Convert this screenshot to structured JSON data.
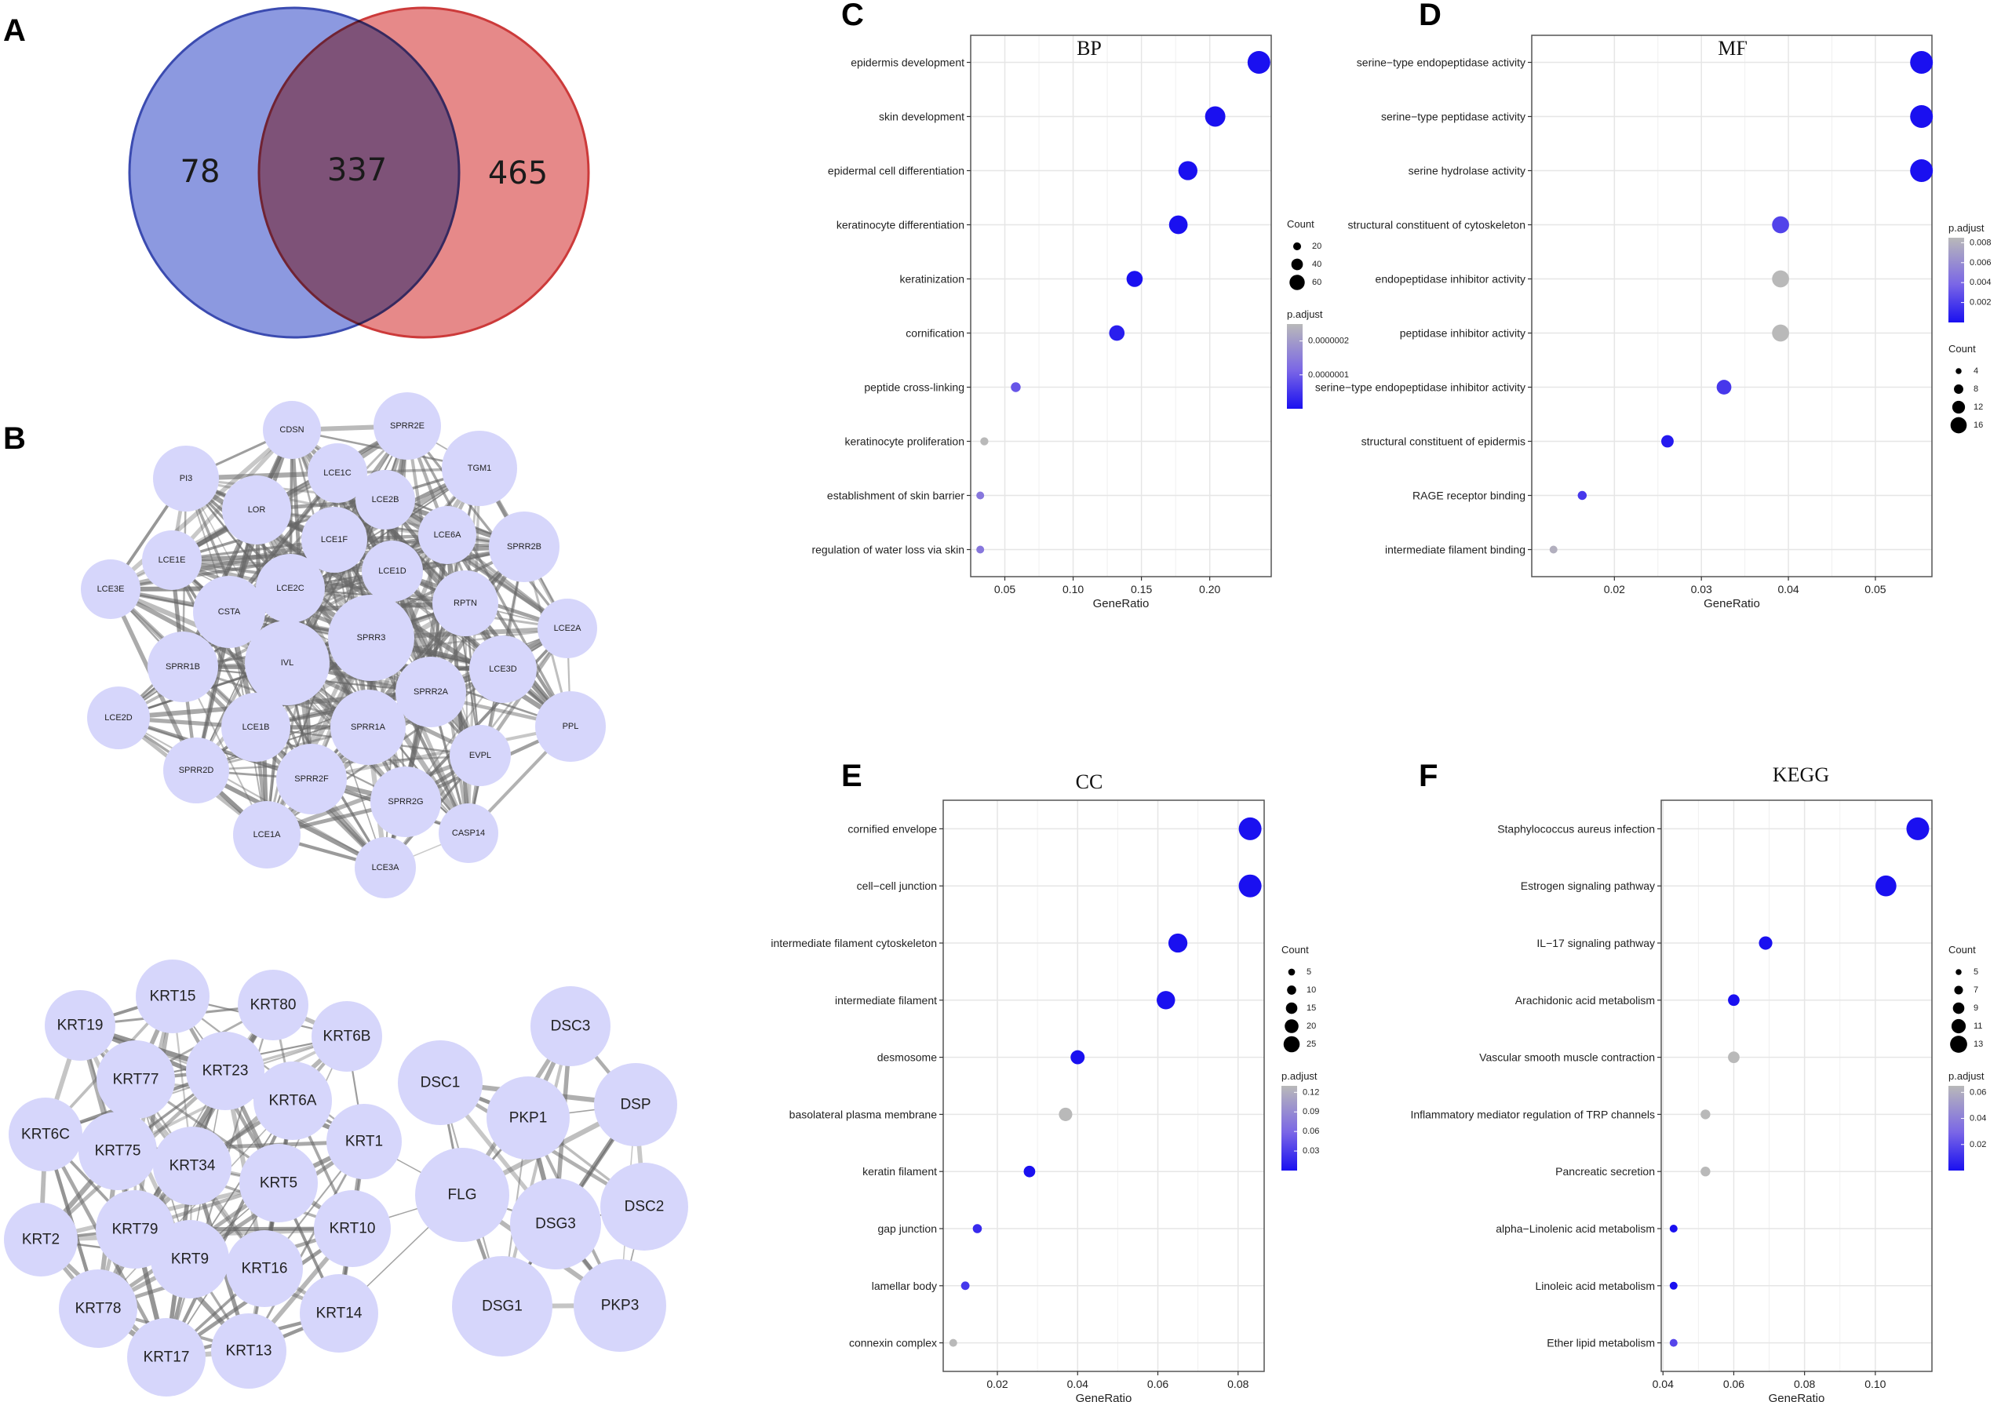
{
  "panel_letters": [
    "A",
    "B",
    "C",
    "D",
    "E",
    "F"
  ],
  "colors": {
    "venn_left": "#6f7fd8",
    "venn_right": "#e06b6b",
    "venn_left_stroke": "#3b4bb0",
    "venn_right_stroke": "#cc3a3a",
    "node_fill": "#d6d6fb",
    "edge": "#666666",
    "dot_high": "#1a10f0",
    "dot_low": "#b9b9b9"
  },
  "venn": {
    "left_only": "78",
    "overlap": "337",
    "right_only": "465"
  },
  "network": {
    "top_nodes": [
      "CDSN",
      "SPRR2E",
      "TGM1",
      "PI3",
      "LOR",
      "LCE1C",
      "LCE2B",
      "LCE6A",
      "SPRR2B",
      "LCE1E",
      "LCE1F",
      "LCE1D",
      "LCE3E",
      "LCE2C",
      "RPTN",
      "LCE2A",
      "CSTA",
      "SPRR3",
      "IVL",
      "SPRR1B",
      "LCE3D",
      "SPRR2A",
      "LCE2D",
      "LCE1B",
      "SPRR1A",
      "EVPL",
      "PPL",
      "SPRR2D",
      "SPRR2F",
      "SPRR2G",
      "CASP14",
      "LCE1A",
      "LCE3A"
    ],
    "keratin_nodes": [
      "KRT19",
      "KRT15",
      "KRT80",
      "KRT6B",
      "KRT77",
      "KRT23",
      "KRT6A",
      "KRT6C",
      "KRT75",
      "KRT34",
      "KRT1",
      "KRT5",
      "KRT2",
      "KRT79",
      "KRT10",
      "KRT9",
      "KRT16",
      "KRT78",
      "KRT14",
      "KRT17",
      "KRT13"
    ],
    "desmosome_nodes": [
      "DSC3",
      "DSC1",
      "PKP1",
      "DSP",
      "FLG",
      "DSG3",
      "DSC2",
      "DSG1",
      "PKP3"
    ]
  },
  "chart_data": [
    {
      "type": "scatter",
      "panel": "C",
      "title": "BP",
      "xlabel": "GeneRatio",
      "xlim": [
        0.025,
        0.245
      ],
      "xticks": [
        0.05,
        0.1,
        0.15,
        0.2
      ],
      "xtick_labels": [
        "0.05",
        "0.10",
        "0.15",
        "0.20"
      ],
      "terms": [
        "epidermis development",
        "skin development",
        "epidermal cell differentiation",
        "keratinocyte differentiation",
        "keratinization",
        "cornification",
        "peptide cross-linking",
        "keratinocyte proliferation",
        "establishment of skin barrier",
        "regulation of water loss via skin"
      ],
      "x": [
        0.236,
        0.204,
        0.184,
        0.177,
        0.145,
        0.132,
        0.058,
        0.035,
        0.032,
        0.032
      ],
      "count": [
        70,
        60,
        55,
        53,
        43,
        40,
        17,
        10,
        9,
        9
      ],
      "padjust": [
        0.0,
        0.0,
        0.0,
        0.0,
        0.0,
        2e-08,
        1e-07,
        2.5e-07,
        1.5e-07,
        1.5e-07
      ],
      "count_legend": {
        "title": "Count",
        "values": [
          20,
          40,
          60
        ],
        "labels": [
          "20",
          "40",
          "60"
        ]
      },
      "padj_legend": {
        "title": "p.adjust",
        "min": 0,
        "max": 2.5e-07,
        "ticks": [
          2e-07,
          1e-07
        ],
        "labels": [
          "0.0000002",
          "0.0000001"
        ]
      },
      "legend_order": [
        "count",
        "padj"
      ]
    },
    {
      "type": "scatter",
      "panel": "D",
      "title": "MF",
      "xlabel": "GeneRatio",
      "xlim": [
        0.0105,
        0.0565
      ],
      "xticks": [
        0.02,
        0.03,
        0.04,
        0.05
      ],
      "xtick_labels": [
        "0.02",
        "0.03",
        "0.04",
        "0.05"
      ],
      "terms": [
        "serine−type endopeptidase activity",
        "serine−type peptidase activity",
        "serine hydrolase activity",
        "structural constituent of cytoskeleton",
        "endopeptidase inhibitor activity",
        "peptidase inhibitor activity",
        "serine−type endopeptidase inhibitor activity",
        "structural constituent of epidermis",
        "RAGE receptor binding",
        "intermediate filament binding"
      ],
      "x": [
        0.0553,
        0.0553,
        0.0553,
        0.0391,
        0.0391,
        0.0391,
        0.0326,
        0.0261,
        0.0163,
        0.013
      ],
      "count": [
        17,
        17,
        17,
        12,
        12,
        12,
        10,
        8,
        5,
        4
      ],
      "padjust": [
        0.0,
        0.0,
        0.0,
        0.0025,
        0.0085,
        0.0085,
        0.002,
        0.0005,
        0.002,
        0.008
      ],
      "count_legend": {
        "title": "Count",
        "values": [
          4,
          8,
          12,
          16
        ],
        "labels": [
          "4",
          "8",
          "12",
          "16"
        ]
      },
      "padj_legend": {
        "title": "p.adjust",
        "min": 0,
        "max": 0.0085,
        "ticks": [
          0.008,
          0.006,
          0.004,
          0.002
        ],
        "labels": [
          "0.008",
          "0.006",
          "0.004",
          "0.002"
        ]
      },
      "legend_order": [
        "padj",
        "count"
      ]
    },
    {
      "type": "scatter",
      "panel": "E",
      "title": "CC",
      "xlabel": "GeneRatio",
      "xlim": [
        0.0065,
        0.0865
      ],
      "xticks": [
        0.02,
        0.04,
        0.06,
        0.08
      ],
      "xtick_labels": [
        "0.02",
        "0.04",
        "0.06",
        "0.08"
      ],
      "terms": [
        "cornified envelope",
        "cell−cell junction",
        "intermediate filament cytoskeleton",
        "intermediate filament",
        "desmosome",
        "basolateral plasma membrane",
        "keratin filament",
        "gap junction",
        "lamellar body",
        "connexin complex"
      ],
      "x": [
        0.083,
        0.083,
        0.065,
        0.062,
        0.04,
        0.037,
        0.028,
        0.015,
        0.012,
        0.009
      ],
      "count": [
        27,
        27,
        21,
        20,
        13,
        12,
        9,
        5,
        4,
        3
      ],
      "padjust": [
        0.0,
        0.0,
        0.0,
        0.0,
        0.0,
        0.13,
        0.0,
        0.02,
        0.03,
        0.13
      ],
      "count_legend": {
        "title": "Count",
        "values": [
          5,
          10,
          15,
          20,
          25
        ],
        "labels": [
          "5",
          "10",
          "15",
          "20",
          "25"
        ]
      },
      "padj_legend": {
        "title": "p.adjust",
        "min": 0,
        "max": 0.13,
        "ticks": [
          0.12,
          0.09,
          0.06,
          0.03
        ],
        "labels": [
          "0.12",
          "0.09",
          "0.06",
          "0.03"
        ]
      },
      "legend_order": [
        "count",
        "padj"
      ]
    },
    {
      "type": "scatter",
      "panel": "F",
      "title": "KEGG",
      "xlabel": "GeneRatio",
      "xlim": [
        0.0395,
        0.116
      ],
      "xticks": [
        0.04,
        0.06,
        0.08,
        0.1
      ],
      "xtick_labels": [
        "0.04",
        "0.06",
        "0.08",
        "0.10"
      ],
      "terms": [
        "Staphylococcus aureus infection",
        "Estrogen signaling pathway",
        "IL−17 signaling pathway",
        "Arachidonic acid metabolism",
        "Vascular smooth muscle contraction",
        "Inflammatory mediator regulation of TRP channels",
        "Pancreatic secretion",
        "alpha−Linolenic acid metabolism",
        "Linoleic acid metabolism",
        "Ether lipid metabolism"
      ],
      "x": [
        0.112,
        0.103,
        0.069,
        0.06,
        0.06,
        0.052,
        0.052,
        0.043,
        0.043,
        0.043
      ],
      "count": [
        13,
        12,
        8,
        7,
        7,
        6,
        6,
        5,
        5,
        5
      ],
      "padjust": [
        0.0,
        0.0,
        0.0,
        0.0,
        0.065,
        0.065,
        0.065,
        0.0,
        0.0,
        0.02
      ],
      "count_legend": {
        "title": "Count",
        "values": [
          5,
          7,
          9,
          11,
          13
        ],
        "labels": [
          "5",
          "7",
          "9",
          "11",
          "13"
        ]
      },
      "padj_legend": {
        "title": "p.adjust",
        "min": 0,
        "max": 0.065,
        "ticks": [
          0.06,
          0.04,
          0.02
        ],
        "labels": [
          "0.06",
          "0.04",
          "0.02"
        ]
      },
      "legend_order": [
        "count",
        "padj"
      ]
    }
  ]
}
